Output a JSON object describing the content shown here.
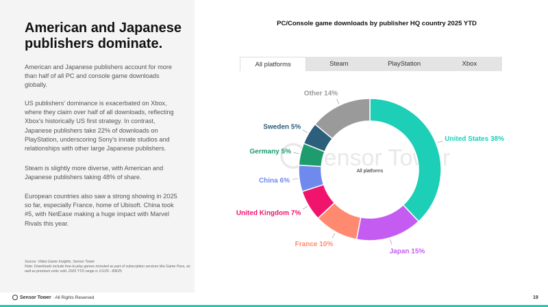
{
  "slide": {
    "headline": "American and Japanese publishers dominate.",
    "paragraphs": [
      "American and Japanese publishers account for more than half of all PC and console game downloads globally.",
      "US publishers' dominance is exacerbated on Xbox, where they claim over half of all downloads, reflecting Xbox's historically US first strategy. In contrast, Japanese publishers take 22% of downloads on PlayStation, underscoring Sony's innate studios and relationships with other large Japanese publishers.",
      "Steam is slightly more diverse, with American and Japanese publishers taking 48% of share.",
      "European countries also saw a strong showing in 2025 so far, especially France, home of Ubisoft. China took #5, with NetEase making a huge impact with Marvel Rivals this year."
    ],
    "source": "Source: Video Game Insights, Sensor Tower",
    "note": "Note: Downloads include free-to-play games included as part of subscription services like Game Pass, as well as premium units sold. 2025 YTD range is 1/1/25 - 8/8/25",
    "footer_brand": "Sensor Tower",
    "footer_rights": "· All Rights Reserved",
    "page_number": "19",
    "watermark": "Sensor Tower"
  },
  "tabs": [
    {
      "label": "All platforms",
      "active": true
    },
    {
      "label": "Steam",
      "active": false
    },
    {
      "label": "PlayStation",
      "active": false
    },
    {
      "label": "Xbox",
      "active": false
    }
  ],
  "chart_data": {
    "type": "pie",
    "title": "PC/Console game downloads by publisher HQ country 2025 YTD",
    "center_label": "All platforms",
    "slices": [
      {
        "label": "United States",
        "value": 38,
        "display": "United States 38%",
        "color": "#1dcfb6"
      },
      {
        "label": "Japan",
        "value": 15,
        "display": "Japan 15%",
        "color": "#c45cf2"
      },
      {
        "label": "France",
        "value": 10,
        "display": "France 10%",
        "color": "#ff8a70"
      },
      {
        "label": "United Kingdom",
        "value": 7,
        "display": "United Kingdom 7%",
        "color": "#f0146c"
      },
      {
        "label": "China",
        "value": 6,
        "display": "China 6%",
        "color": "#6f89ec"
      },
      {
        "label": "Germany",
        "value": 5,
        "display": "Germany 5%",
        "color": "#1e9c6e"
      },
      {
        "label": "Sweden",
        "value": 5,
        "display": "Sweden 5%",
        "color": "#2c5f7c"
      },
      {
        "label": "Other",
        "value": 14,
        "display": "Other 14%",
        "color": "#9a9a9a"
      }
    ]
  }
}
